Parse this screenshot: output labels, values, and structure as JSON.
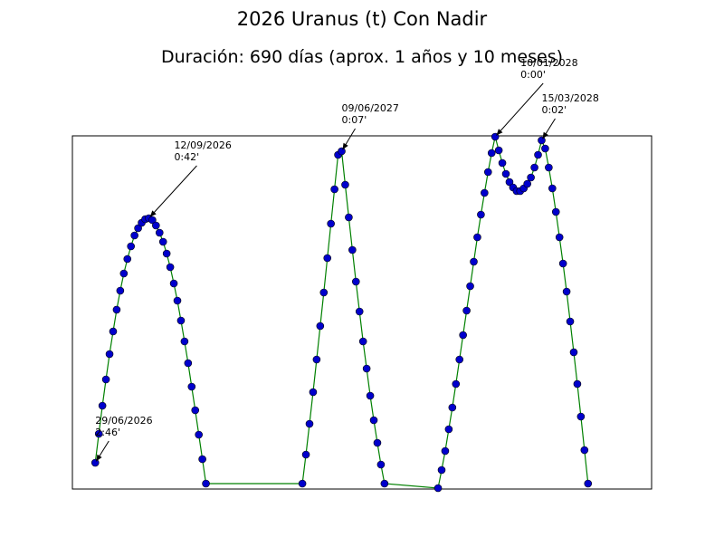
{
  "chart_data": {
    "type": "line",
    "title": "2026 Uranus (t) Con Nadir",
    "subtitle": "Duración: 690 días (aprox. 1 años y 10 meses)",
    "x": [
      0,
      5,
      10,
      15,
      20,
      25,
      30,
      35,
      40,
      45,
      50,
      55,
      60,
      65,
      70,
      75,
      80,
      85,
      90,
      95,
      100,
      105,
      110,
      115,
      120,
      125,
      130,
      135,
      140,
      145,
      150,
      155,
      290,
      295,
      300,
      305,
      310,
      315,
      320,
      325,
      330,
      335,
      340,
      345,
      350,
      355,
      360,
      365,
      370,
      375,
      380,
      385,
      390,
      395,
      400,
      405,
      480,
      485,
      490,
      495,
      500,
      505,
      510,
      515,
      520,
      525,
      530,
      535,
      540,
      545,
      550,
      555,
      560,
      565,
      570,
      575,
      580,
      585,
      590,
      595,
      600,
      605,
      610,
      615,
      620,
      625,
      630,
      635,
      640,
      645,
      650,
      655,
      660,
      665,
      670,
      675,
      680,
      685,
      690
    ],
    "series": [
      {
        "color": "#008000",
        "marker_color": "#0000cc",
        "values": [
          29,
          61,
          92,
          121,
          149,
          174,
          198,
          219,
          238,
          254,
          268,
          280,
          288,
          294,
          298,
          299,
          297,
          291,
          283,
          273,
          260,
          245,
          227,
          208,
          186,
          163,
          139,
          113,
          87,
          60,
          33,
          6,
          6,
          38,
          72,
          107,
          143,
          180,
          217,
          255,
          293,
          331,
          369,
          373,
          336,
          300,
          264,
          229,
          196,
          163,
          133,
          103,
          76,
          51,
          27,
          6,
          1,
          21,
          42,
          66,
          90,
          116,
          143,
          170,
          197,
          224,
          251,
          278,
          303,
          327,
          350,
          371,
          389,
          374,
          360,
          348,
          339,
          333,
          329,
          329,
          332,
          337,
          344,
          355,
          369,
          385,
          376,
          355,
          332,
          306,
          278,
          249,
          218,
          185,
          151,
          116,
          80,
          43,
          6
        ]
      }
    ],
    "xlim": [
      -32,
      779
    ],
    "ylim": [
      0,
      390
    ],
    "annotations": [
      {
        "date": "29/06/2026",
        "time": "2:46'",
        "x": 0,
        "y": 29
      },
      {
        "date": "12/09/2026",
        "time": "0:42'",
        "x": 75,
        "y": 299
      },
      {
        "date": "09/06/2027",
        "time": "0:07'",
        "x": 345,
        "y": 373
      },
      {
        "date": "10/01/2028",
        "time": "0:00'",
        "x": 560,
        "y": 389
      },
      {
        "date": "15/03/2028",
        "time": "0:02'",
        "x": 625,
        "y": 385
      }
    ]
  }
}
